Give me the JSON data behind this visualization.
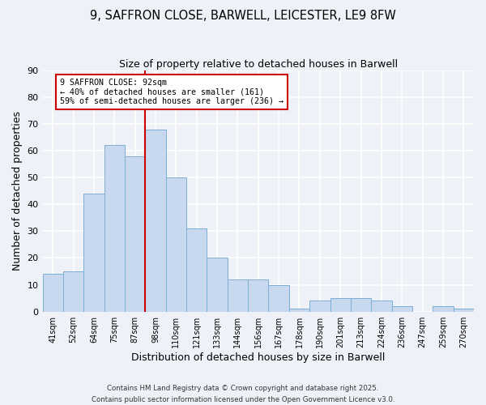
{
  "title_line1": "9, SAFFRON CLOSE, BARWELL, LEICESTER, LE9 8FW",
  "title_line2": "Size of property relative to detached houses in Barwell",
  "xlabel": "Distribution of detached houses by size in Barwell",
  "ylabel": "Number of detached properties",
  "categories": [
    "41sqm",
    "52sqm",
    "64sqm",
    "75sqm",
    "87sqm",
    "98sqm",
    "110sqm",
    "121sqm",
    "133sqm",
    "144sqm",
    "156sqm",
    "167sqm",
    "178sqm",
    "190sqm",
    "201sqm",
    "213sqm",
    "224sqm",
    "236sqm",
    "247sqm",
    "259sqm",
    "270sqm"
  ],
  "values": [
    14,
    15,
    44,
    62,
    58,
    68,
    50,
    31,
    20,
    12,
    12,
    10,
    1,
    4,
    5,
    5,
    4,
    2,
    0,
    2,
    1
  ],
  "bar_color": "#c8d8ee",
  "bar_edge_color": "#7bafd4",
  "vline_x_idx": 4.5,
  "vline_color": "#cc0000",
  "annotation_text": "9 SAFFRON CLOSE: 92sqm\n← 40% of detached houses are smaller (161)\n59% of semi-detached houses are larger (236) →",
  "annotation_box_color": "#ffffff",
  "annotation_box_edge": "#cc0000",
  "ylim": [
    0,
    90
  ],
  "yticks": [
    0,
    10,
    20,
    30,
    40,
    50,
    60,
    70,
    80,
    90
  ],
  "footer_line1": "Contains HM Land Registry data © Crown copyright and database right 2025.",
  "footer_line2": "Contains public sector information licensed under the Open Government Licence v3.0.",
  "bg_color": "#eef2f8",
  "grid_color": "#ffffff"
}
